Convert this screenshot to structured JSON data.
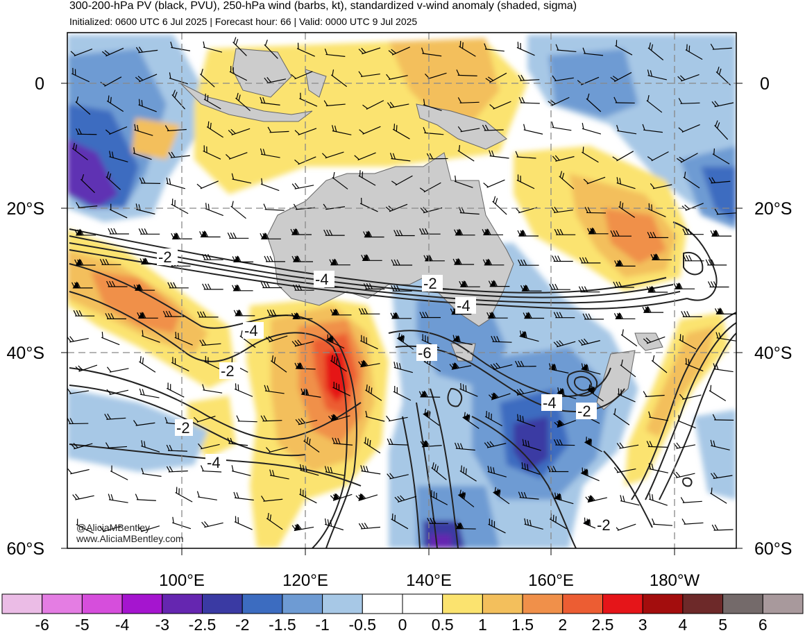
{
  "header": {
    "title": "300-200-hPa PV (black, PVU), 250-hPa wind (barbs, kt), standardized v-wind anomaly (shaded, sigma)",
    "subtitle": "Initialized: 0600 UTC 6 Jul 2025 | Forecast hour: 66 | Valid: 0000 UTC 9 Jul 2025"
  },
  "map": {
    "lat_labels_left": [
      "0",
      "20°S",
      "40°S",
      "60°S"
    ],
    "lat_labels_right": [
      "0",
      "20°S",
      "40°S",
      "60°S"
    ],
    "lon_labels": [
      "100°E",
      "120°E",
      "140°E",
      "160°E",
      "180°W"
    ],
    "contour_labels": [
      "-2",
      "-4",
      "-2",
      "-4",
      "-4",
      "-2",
      "-6",
      "-2",
      "-4",
      "-4",
      "-2",
      "-2"
    ],
    "land_color": "#cccccc",
    "contour_color": "#222222",
    "barb_color": "#000000"
  },
  "credit": {
    "line1": "@AliciaMBentley",
    "line2": "www.AliciaMBentley.com"
  },
  "colorbar": {
    "labels": [
      "-6",
      "-5",
      "-4",
      "-3",
      "-2.5",
      "-2",
      "-1.5",
      "-1",
      "-0.5",
      "0",
      "0.5",
      "1",
      "1.5",
      "2",
      "2.5",
      "3",
      "4",
      "5",
      "6"
    ],
    "colors": [
      "#ebbce6",
      "#e47de3",
      "#d64edc",
      "#a515cf",
      "#6526b0",
      "#3a3aa3",
      "#3c6cc0",
      "#6e9bd3",
      "#a7c8e6",
      "#ffffff",
      "#ffffff",
      "#fbe36f",
      "#f3bf5c",
      "#f0904a",
      "#ec5d33",
      "#e51519",
      "#a30d0d",
      "#6d2929",
      "#746a6a",
      "#a8999c"
    ]
  }
}
